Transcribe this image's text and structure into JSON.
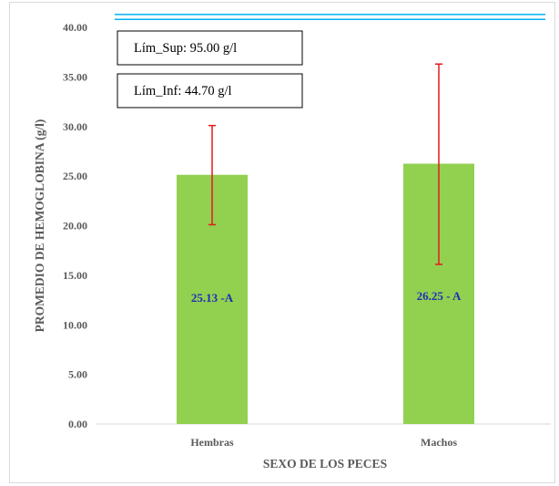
{
  "chart_data": {
    "type": "bar",
    "categories": [
      "Hembras",
      "Machos"
    ],
    "values": [
      25.13,
      26.25
    ],
    "error_low": [
      20.1,
      16.1
    ],
    "error_high": [
      30.1,
      36.3
    ],
    "data_labels": [
      "25.13 -A",
      "26.25 - A"
    ],
    "xlabel": "SEXO DE LOS PECES",
    "ylabel": "PROMEDIO DE HEMOGLOBINA  (g/l)",
    "ylim": [
      0,
      40
    ],
    "yticks": [
      "0.00",
      "5.00",
      "10.00",
      "15.00",
      "20.00",
      "25.00",
      "30.00",
      "35.00",
      "40.00"
    ],
    "reference_lines": [
      41.3,
      40.8
    ],
    "annotations": [
      "Lím_Sup: 95.00 g/l",
      "Lím_Inf: 44.70 g/l"
    ],
    "grid": false,
    "colors": {
      "bar": "#92d050",
      "error": "#e41a1c",
      "reference": "#00b0f0",
      "data_label": "#1f2fb4"
    }
  }
}
